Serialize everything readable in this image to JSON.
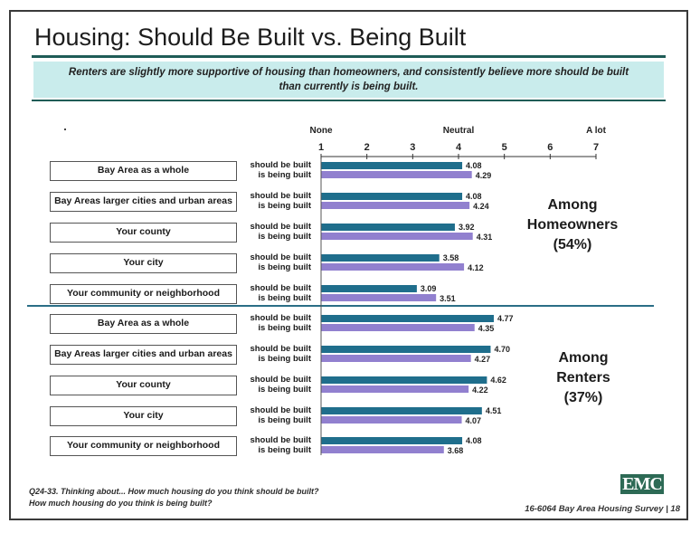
{
  "title": "Housing: Should Be Built vs. Being Built",
  "subtitle": {
    "line1": "Renters are slightly more supportive of housing than homeowners, and consistently believe more should be built",
    "line2": "than currently is being built."
  },
  "footnote": {
    "line1": "Q24-33. Thinking about... How much housing do you think should be built?",
    "line2": "How much housing do you think is being built?"
  },
  "logo_text": "EMC",
  "page_ref": "16-6064 Bay Area Housing Survey | 18",
  "groups": {
    "homeowners": {
      "line1": "Among",
      "line2": "Homeowners",
      "line3": "(54%)"
    },
    "renters": {
      "line1": "Among",
      "line2": "Renters",
      "line3": "(37%)"
    }
  },
  "colors": {
    "should": "#1f6e8c",
    "being": "#9180cf",
    "rule": "#1f5c57",
    "subtitle_bg": "#c9ecec",
    "divider": "#2b6e86"
  },
  "chart_data": {
    "type": "bar",
    "orientation": "horizontal",
    "scale_labels": {
      "left": "None",
      "middle": "Neutral",
      "right": "A lot"
    },
    "ticks": [
      1,
      2,
      3,
      4,
      5,
      6,
      7
    ],
    "xlim": [
      1,
      7
    ],
    "series_labels": {
      "should": "should be built",
      "being": "is being built"
    },
    "rows": [
      {
        "label": "Bay Area as a whole",
        "should": 4.08,
        "being": 4.29
      },
      {
        "label": "Bay Areas larger cities and urban areas",
        "should": 4.08,
        "being": 4.24
      },
      {
        "label": "Your county",
        "should": 3.92,
        "being": 4.31
      },
      {
        "label": "Your city",
        "should": 3.58,
        "being": 4.12
      },
      {
        "label": "Your community or neighborhood",
        "should": 3.09,
        "being": 3.51
      },
      {
        "label": "Bay Area as a whole",
        "should": 4.77,
        "being": 4.35
      },
      {
        "label": "Bay Areas larger cities and urban areas",
        "should": 4.7,
        "being": 4.27
      },
      {
        "label": "Your county",
        "should": 4.62,
        "being": 4.22
      },
      {
        "label": "Your city",
        "should": 4.51,
        "being": 4.07
      },
      {
        "label": "Your community or neighborhood",
        "should": 4.08,
        "being": 3.68
      }
    ],
    "value_labels": [
      [
        "4.08",
        "4.29"
      ],
      [
        "4.08",
        "4.24"
      ],
      [
        "3.92",
        "4.31"
      ],
      [
        "3.58",
        "4.12"
      ],
      [
        "3.09",
        "3.51"
      ],
      [
        "4.77",
        "4.35"
      ],
      [
        "4.70",
        "4.27"
      ],
      [
        "4.62",
        "4.22"
      ],
      [
        "4.51",
        "4.07"
      ],
      [
        "4.08",
        "3.68"
      ]
    ]
  }
}
